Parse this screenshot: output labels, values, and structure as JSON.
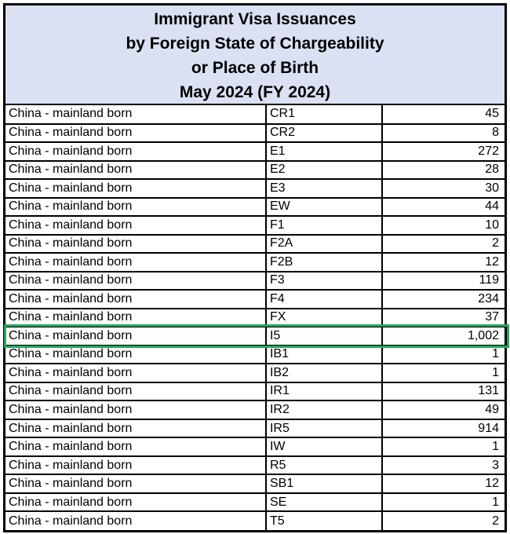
{
  "title": {
    "lines": [
      "Immigrant Visa Issuances",
      "by Foreign State of Chargeability",
      "or Place of Birth",
      "May 2024 (FY 2024)"
    ]
  },
  "table": {
    "rows": [
      {
        "place": "China - mainland born",
        "visa_class": "CR1",
        "issuances": "45",
        "highlighted": false
      },
      {
        "place": "China - mainland born",
        "visa_class": "CR2",
        "issuances": "8",
        "highlighted": false
      },
      {
        "place": "China - mainland born",
        "visa_class": "E1",
        "issuances": "272",
        "highlighted": false
      },
      {
        "place": "China - mainland born",
        "visa_class": "E2",
        "issuances": "28",
        "highlighted": false
      },
      {
        "place": "China - mainland born",
        "visa_class": "E3",
        "issuances": "30",
        "highlighted": false
      },
      {
        "place": "China - mainland born",
        "visa_class": "EW",
        "issuances": "44",
        "highlighted": false
      },
      {
        "place": "China - mainland born",
        "visa_class": "F1",
        "issuances": "10",
        "highlighted": false
      },
      {
        "place": "China - mainland born",
        "visa_class": "F2A",
        "issuances": "2",
        "highlighted": false
      },
      {
        "place": "China - mainland born",
        "visa_class": "F2B",
        "issuances": "12",
        "highlighted": false
      },
      {
        "place": "China - mainland born",
        "visa_class": "F3",
        "issuances": "119",
        "highlighted": false
      },
      {
        "place": "China - mainland born",
        "visa_class": "F4",
        "issuances": "234",
        "highlighted": false
      },
      {
        "place": "China - mainland born",
        "visa_class": "FX",
        "issuances": "37",
        "highlighted": false
      },
      {
        "place": "China - mainland born",
        "visa_class": "I5",
        "issuances": "1,002",
        "highlighted": true
      },
      {
        "place": "China - mainland born",
        "visa_class": "IB1",
        "issuances": "1",
        "highlighted": false
      },
      {
        "place": "China - mainland born",
        "visa_class": "IB2",
        "issuances": "1",
        "highlighted": false
      },
      {
        "place": "China - mainland born",
        "visa_class": "IR1",
        "issuances": "131",
        "highlighted": false
      },
      {
        "place": "China - mainland born",
        "visa_class": "IR2",
        "issuances": "49",
        "highlighted": false
      },
      {
        "place": "China - mainland born",
        "visa_class": "IR5",
        "issuances": "914",
        "highlighted": false
      },
      {
        "place": "China - mainland born",
        "visa_class": "IW",
        "issuances": "1",
        "highlighted": false
      },
      {
        "place": "China - mainland born",
        "visa_class": "R5",
        "issuances": "3",
        "highlighted": false
      },
      {
        "place": "China - mainland born",
        "visa_class": "SB1",
        "issuances": "12",
        "highlighted": false
      },
      {
        "place": "China - mainland born",
        "visa_class": "SE",
        "issuances": "1",
        "highlighted": false
      },
      {
        "place": "China - mainland born",
        "visa_class": "T5",
        "issuances": "2",
        "highlighted": false
      }
    ]
  },
  "colors": {
    "header_bg": "#dbe1f3",
    "border": "#000000",
    "highlight_border": "#26a559"
  }
}
